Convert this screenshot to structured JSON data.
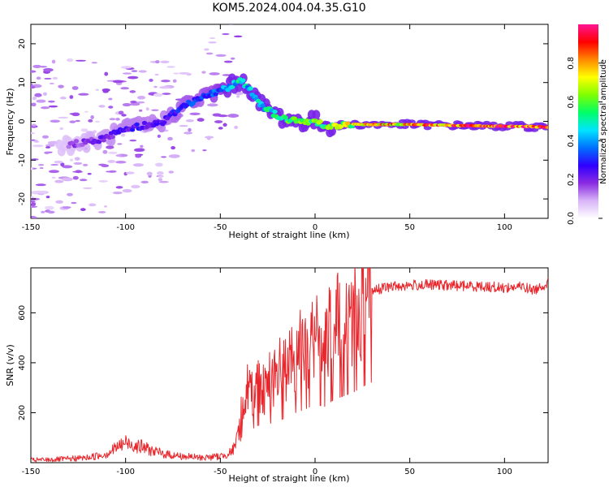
{
  "figure_title": "KOM5.2024.004.04.35.G10",
  "chart_data": [
    {
      "type": "heatmap",
      "xlabel": "Height of straight line (km)",
      "ylabel": "Frequency (Hz)",
      "xlim": [
        -150,
        123
      ],
      "ylim": [
        -25,
        25
      ],
      "x_ticks": [
        -150,
        -100,
        -50,
        0,
        50,
        100
      ],
      "y_ticks": [
        -20,
        -10,
        0,
        10,
        20
      ],
      "x_tick_labels": [
        "-150",
        "-100",
        "-50",
        "0",
        "50",
        "100"
      ],
      "y_tick_labels": [
        "-20",
        "-10",
        "0",
        "10",
        "20"
      ],
      "colorbar": {
        "label": "Normalized spectral amplitude",
        "range": [
          0,
          1
        ],
        "ticks": [
          0,
          0.2,
          0.4,
          0.6,
          0.8
        ],
        "tick_labels": [
          "0.0",
          "0.2",
          "0.4",
          "0.6",
          "0.8"
        ],
        "colors": [
          "#ffffff",
          "#d8b4f8",
          "#8a2be2",
          "#3000ff",
          "#0070ff",
          "#00e5ff",
          "#00ff66",
          "#7fff00",
          "#ffff00",
          "#ff8800",
          "#ff0000",
          "#ff1493"
        ]
      },
      "ridge": {
        "x": [
          -130,
          -115,
          -100,
          -90,
          -80,
          -70,
          -60,
          -50,
          -45,
          -40,
          -35,
          -30,
          -25,
          -20,
          -15,
          -10,
          -5,
          0,
          5,
          10,
          20,
          30,
          50,
          70,
          90,
          110,
          123
        ],
        "freq": [
          -6,
          -5,
          -2,
          -1,
          0,
          4,
          6,
          8,
          9,
          10.5,
          9,
          5,
          3,
          1.5,
          0.5,
          0,
          -0.2,
          0.2,
          -1,
          -1.2,
          -0.8,
          -0.8,
          -0.8,
          -1,
          -1.2,
          -1.3,
          -1.5
        ],
        "amplitude": [
          0.15,
          0.2,
          0.25,
          0.25,
          0.25,
          0.3,
          0.3,
          0.35,
          0.4,
          0.5,
          0.45,
          0.45,
          0.5,
          0.5,
          0.55,
          0.55,
          0.6,
          0.6,
          0.6,
          0.65,
          0.7,
          0.75,
          0.8,
          0.85,
          0.9,
          0.9,
          0.9
        ]
      }
    },
    {
      "type": "line",
      "xlabel": "Height of straight line (km)",
      "ylabel": "SNR (v/v)",
      "xlim": [
        -150,
        123
      ],
      "ylim": [
        0,
        780
      ],
      "x_ticks": [
        -150,
        -100,
        -50,
        0,
        50,
        100
      ],
      "y_ticks": [
        200,
        400,
        600
      ],
      "x_tick_labels": [
        "-150",
        "-100",
        "-50",
        "0",
        "50",
        "100"
      ],
      "y_tick_labels": [
        "200",
        "400",
        "600"
      ],
      "series": [
        {
          "color": "#e8262b",
          "x": [
            -150,
            -140,
            -130,
            -120,
            -110,
            -105,
            -100,
            -95,
            -90,
            -85,
            -80,
            -70,
            -60,
            -50,
            -45,
            -42,
            -40,
            -38,
            -36,
            -34,
            -32,
            -30,
            -28,
            -26,
            -24,
            -22,
            -20,
            -15,
            -10,
            -5,
            0,
            5,
            10,
            15,
            20,
            25,
            30,
            40,
            50,
            60,
            70,
            80,
            90,
            100,
            110,
            115,
            118,
            120,
            123
          ],
          "y": [
            10,
            12,
            15,
            20,
            35,
            60,
            80,
            70,
            60,
            45,
            35,
            25,
            20,
            25,
            40,
            60,
            150,
            250,
            300,
            280,
            300,
            320,
            310,
            300,
            340,
            330,
            360,
            380,
            430,
            460,
            500,
            480,
            540,
            570,
            600,
            650,
            690,
            705,
            710,
            712,
            710,
            708,
            705,
            700,
            705,
            690,
            700,
            710,
            720
          ]
        }
      ]
    }
  ]
}
